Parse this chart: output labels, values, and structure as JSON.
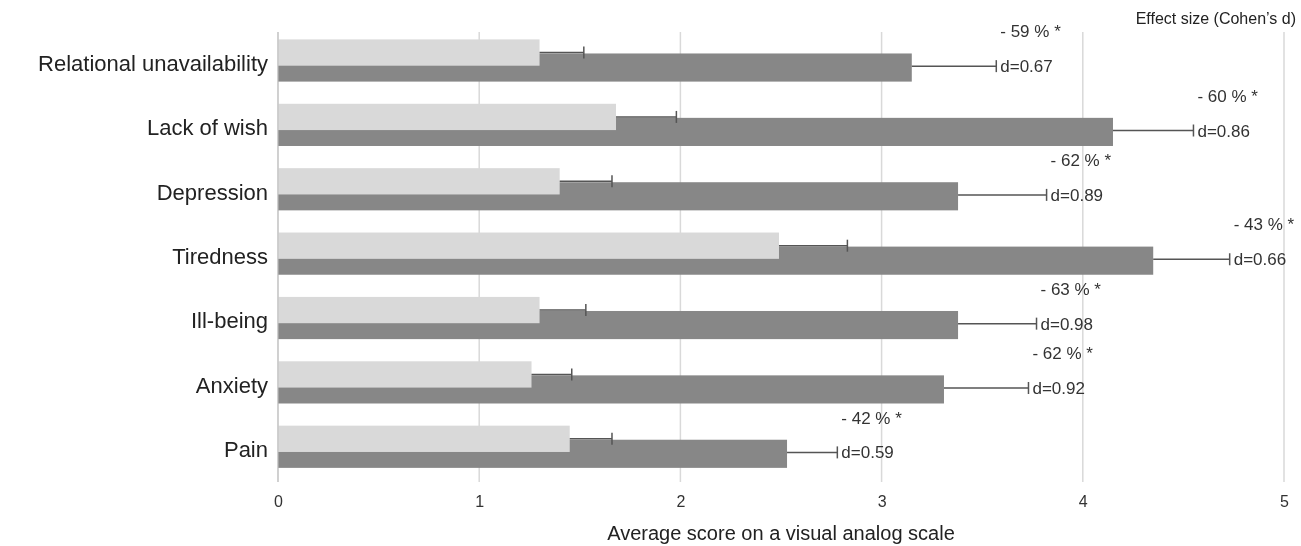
{
  "chart_data": {
    "type": "bar",
    "orientation": "horizontal",
    "xlabel": "Average score on a visual analog scale",
    "categories": [
      "Relational unavailability",
      "Lack of wish",
      "Depression",
      "Tiredness",
      "Ill-being",
      "Anxiety",
      "Pain"
    ],
    "series": [
      {
        "color": "#878787",
        "values": [
          3.15,
          4.15,
          3.38,
          4.35,
          3.38,
          3.31,
          2.53
        ],
        "errors": [
          [
            3.15,
            3.57
          ],
          [
            4.15,
            4.55
          ],
          [
            3.38,
            3.82
          ],
          [
            4.35,
            4.73
          ],
          [
            3.38,
            3.77
          ],
          [
            3.31,
            3.73
          ],
          [
            2.53,
            2.78
          ]
        ]
      },
      {
        "color": "#d9d9d9",
        "values": [
          1.3,
          1.68,
          1.4,
          2.49,
          1.3,
          1.26,
          1.45
        ],
        "errors": [
          [
            1.3,
            1.52
          ],
          [
            1.68,
            1.98
          ],
          [
            1.4,
            1.66
          ],
          [
            2.49,
            2.83
          ],
          [
            1.3,
            1.53
          ],
          [
            1.26,
            1.46
          ],
          [
            1.45,
            1.66
          ]
        ]
      }
    ],
    "xlim": [
      0,
      5
    ],
    "xticks": [
      0,
      1,
      2,
      3,
      4,
      5
    ],
    "grid": "x",
    "annotations": [
      "Effect size (Cohen’s d)",
      {
        "text": "- 59 % *",
        "x": 3.57,
        "y": "Relational unavailability"
      },
      {
        "text": "d=0.67",
        "x": 3.57,
        "y": "Relational unavailability"
      },
      {
        "text": "- 60 % *",
        "x": 4.55,
        "y": "Lack of wish"
      },
      {
        "text": "d=0.86",
        "x": 4.55,
        "y": "Lack of wish"
      },
      {
        "text": "- 62 % *",
        "x": 3.82,
        "y": "Depression"
      },
      {
        "text": "d=0.89",
        "x": 3.82,
        "y": "Depression"
      },
      {
        "text": "- 43 % *",
        "x": 4.73,
        "y": "Tiredness"
      },
      {
        "text": "d=0.66",
        "x": 4.73,
        "y": "Tiredness"
      },
      {
        "text": "- 63 % *",
        "x": 3.77,
        "y": "Ill-being"
      },
      {
        "text": "d=0.98",
        "x": 3.77,
        "y": "Ill-being"
      },
      {
        "text": "- 62 % *",
        "x": 3.73,
        "y": "Anxiety"
      },
      {
        "text": "d=0.92",
        "x": 3.73,
        "y": "Anxiety"
      },
      {
        "text": "- 42 % *",
        "x": 2.78,
        "y": "Pain"
      },
      {
        "text": "d=0.59",
        "x": 2.78,
        "y": "Pain"
      }
    ]
  }
}
